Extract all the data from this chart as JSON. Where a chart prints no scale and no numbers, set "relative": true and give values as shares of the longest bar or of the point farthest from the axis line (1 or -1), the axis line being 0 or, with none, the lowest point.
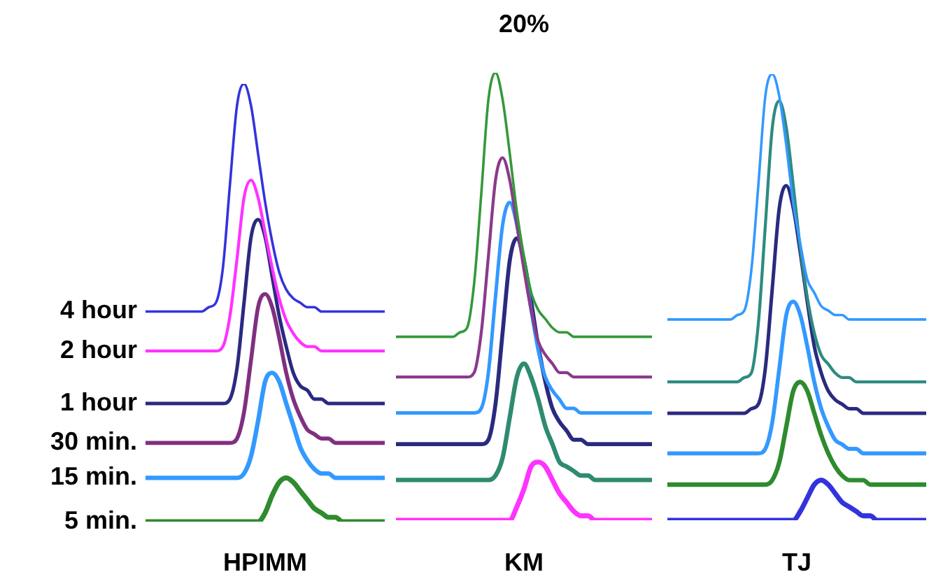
{
  "chart_data": [
    {
      "type": "line",
      "relative": true,
      "xlabel": "HPIMM",
      "categories": [
        null,
        null,
        null,
        null,
        null,
        null,
        null,
        null,
        null,
        null,
        null,
        null,
        null,
        null,
        null,
        null,
        null,
        null,
        null,
        null,
        null,
        null,
        null,
        null,
        null,
        null,
        null,
        null,
        null,
        null,
        null,
        null,
        null,
        null,
        null
      ],
      "series": [
        {
          "name": "4 hour",
          "color": "#3333dd",
          "values": [
            0.48,
            0.48,
            0.48,
            0.48,
            0.48,
            0.48,
            0.48,
            0.48,
            0.48,
            0.49,
            0.5,
            0.58,
            0.77,
            0.95,
            1.0,
            0.95,
            0.84,
            0.73,
            0.64,
            0.57,
            0.53,
            0.51,
            0.5,
            0.49,
            0.49,
            0.48,
            0.48,
            0.48,
            0.48,
            0.48,
            0.48,
            0.48,
            0.48,
            0.48,
            0.48
          ]
        },
        {
          "name": "2 hour",
          "color": "#ff33ff",
          "values": [
            0.39,
            0.39,
            0.39,
            0.39,
            0.39,
            0.39,
            0.39,
            0.39,
            0.39,
            0.39,
            0.39,
            0.4,
            0.47,
            0.6,
            0.74,
            0.78,
            0.74,
            0.66,
            0.58,
            0.51,
            0.46,
            0.43,
            0.41,
            0.4,
            0.4,
            0.39,
            0.39,
            0.39,
            0.39,
            0.39,
            0.39,
            0.39,
            0.39,
            0.39,
            0.39
          ]
        },
        {
          "name": "1 hour",
          "color": "#2a2a80",
          "values": [
            0.27,
            0.27,
            0.27,
            0.27,
            0.27,
            0.27,
            0.27,
            0.27,
            0.27,
            0.27,
            0.27,
            0.27,
            0.28,
            0.35,
            0.5,
            0.65,
            0.69,
            0.65,
            0.56,
            0.47,
            0.4,
            0.34,
            0.31,
            0.3,
            0.28,
            0.28,
            0.27,
            0.27,
            0.27,
            0.27,
            0.27,
            0.27,
            0.27,
            0.27,
            0.27
          ]
        },
        {
          "name": "30 min.",
          "color": "#803080",
          "values": [
            0.18,
            0.18,
            0.18,
            0.18,
            0.18,
            0.18,
            0.18,
            0.18,
            0.18,
            0.18,
            0.18,
            0.18,
            0.18,
            0.19,
            0.25,
            0.37,
            0.49,
            0.52,
            0.49,
            0.42,
            0.34,
            0.28,
            0.24,
            0.21,
            0.2,
            0.19,
            0.19,
            0.18,
            0.18,
            0.18,
            0.18,
            0.18,
            0.18,
            0.18,
            0.18
          ]
        },
        {
          "name": "15 min.",
          "color": "#3399ff",
          "values": [
            0.1,
            0.1,
            0.1,
            0.1,
            0.1,
            0.1,
            0.1,
            0.1,
            0.1,
            0.1,
            0.1,
            0.1,
            0.1,
            0.1,
            0.11,
            0.15,
            0.23,
            0.32,
            0.34,
            0.32,
            0.27,
            0.22,
            0.17,
            0.14,
            0.12,
            0.11,
            0.11,
            0.1,
            0.1,
            0.1,
            0.1,
            0.1,
            0.1,
            0.1,
            0.1
          ]
        },
        {
          "name": "5 min.",
          "color": "#2e8b2e",
          "values": [
            0,
            0,
            0,
            0,
            0,
            0,
            0,
            0,
            0,
            0,
            0,
            0,
            0,
            0,
            0,
            0,
            0,
            0.02,
            0.06,
            0.09,
            0.1,
            0.09,
            0.07,
            0.05,
            0.03,
            0.02,
            0.01,
            0.01,
            0,
            0,
            0,
            0,
            0,
            0,
            0
          ]
        }
      ]
    },
    {
      "type": "line",
      "relative": true,
      "title": "20%",
      "xlabel": "KM",
      "categories": [
        null,
        null,
        null,
        null,
        null,
        null,
        null,
        null,
        null,
        null,
        null,
        null,
        null,
        null,
        null,
        null,
        null,
        null,
        null,
        null,
        null,
        null,
        null,
        null,
        null,
        null,
        null,
        null,
        null,
        null,
        null,
        null,
        null,
        null,
        null,
        null,
        null
      ],
      "series": [
        {
          "color": "#33993a",
          "values": [
            0.41,
            0.41,
            0.41,
            0.41,
            0.41,
            0.41,
            0.41,
            0.41,
            0.41,
            0.42,
            0.43,
            0.53,
            0.73,
            0.94,
            1.0,
            0.94,
            0.82,
            0.69,
            0.59,
            0.51,
            0.47,
            0.45,
            0.43,
            0.42,
            0.42,
            0.41,
            0.41,
            0.41,
            0.41,
            0.41,
            0.41,
            0.41,
            0.41,
            0.41,
            0.41,
            0.41,
            0.41
          ]
        },
        {
          "color": "#8b3a8b",
          "values": [
            0.32,
            0.32,
            0.32,
            0.32,
            0.32,
            0.32,
            0.32,
            0.32,
            0.32,
            0.32,
            0.32,
            0.33,
            0.42,
            0.59,
            0.76,
            0.81,
            0.76,
            0.66,
            0.56,
            0.47,
            0.4,
            0.37,
            0.35,
            0.33,
            0.33,
            0.32,
            0.32,
            0.32,
            0.32,
            0.32,
            0.32,
            0.32,
            0.32,
            0.32,
            0.32,
            0.32,
            0.32
          ]
        },
        {
          "color": "#3399ff",
          "values": [
            0.24,
            0.24,
            0.24,
            0.24,
            0.24,
            0.24,
            0.24,
            0.24,
            0.24,
            0.24,
            0.24,
            0.24,
            0.25,
            0.33,
            0.5,
            0.66,
            0.71,
            0.66,
            0.57,
            0.47,
            0.38,
            0.32,
            0.29,
            0.27,
            0.25,
            0.25,
            0.24,
            0.24,
            0.24,
            0.24,
            0.24,
            0.24,
            0.24,
            0.24,
            0.24,
            0.24,
            0.24
          ]
        },
        {
          "color": "#2a2a80",
          "values": [
            0.17,
            0.17,
            0.17,
            0.17,
            0.17,
            0.17,
            0.17,
            0.17,
            0.17,
            0.17,
            0.17,
            0.17,
            0.17,
            0.18,
            0.26,
            0.42,
            0.58,
            0.63,
            0.58,
            0.49,
            0.39,
            0.31,
            0.25,
            0.22,
            0.2,
            0.18,
            0.18,
            0.17,
            0.17,
            0.17,
            0.17,
            0.17,
            0.17,
            0.17,
            0.17,
            0.17,
            0.17
          ]
        },
        {
          "color": "#2e8b70",
          "values": [
            0.09,
            0.09,
            0.09,
            0.09,
            0.09,
            0.09,
            0.09,
            0.09,
            0.09,
            0.09,
            0.09,
            0.09,
            0.09,
            0.09,
            0.1,
            0.14,
            0.23,
            0.32,
            0.35,
            0.32,
            0.27,
            0.21,
            0.17,
            0.13,
            0.12,
            0.11,
            0.1,
            0.1,
            0.09,
            0.09,
            0.09,
            0.09,
            0.09,
            0.09,
            0.09,
            0.09,
            0.09
          ]
        },
        {
          "color": "#ff33ff",
          "values": [
            0,
            0,
            0,
            0,
            0,
            0,
            0,
            0,
            0,
            0,
            0,
            0,
            0,
            0,
            0,
            0,
            0,
            0.03,
            0.07,
            0.12,
            0.13,
            0.12,
            0.09,
            0.06,
            0.04,
            0.02,
            0.01,
            0.01,
            0,
            0,
            0,
            0,
            0,
            0,
            0,
            0,
            0
          ]
        }
      ]
    },
    {
      "type": "line",
      "relative": true,
      "xlabel": "TJ",
      "categories": [
        null,
        null,
        null,
        null,
        null,
        null,
        null,
        null,
        null,
        null,
        null,
        null,
        null,
        null,
        null,
        null,
        null,
        null,
        null,
        null,
        null,
        null,
        null,
        null,
        null,
        null,
        null,
        null,
        null,
        null,
        null,
        null,
        null,
        null,
        null,
        null,
        null,
        null
      ],
      "series": [
        {
          "color": "#3399ff",
          "values": [
            0.45,
            0.45,
            0.45,
            0.45,
            0.45,
            0.45,
            0.45,
            0.45,
            0.45,
            0.45,
            0.46,
            0.47,
            0.56,
            0.75,
            0.95,
            1.0,
            0.95,
            0.84,
            0.71,
            0.62,
            0.54,
            0.51,
            0.48,
            0.47,
            0.46,
            0.46,
            0.45,
            0.45,
            0.45,
            0.45,
            0.45,
            0.45,
            0.45,
            0.45,
            0.45,
            0.45,
            0.45,
            0.45
          ]
        },
        {
          "color": "#2e8b80",
          "values": [
            0.31,
            0.31,
            0.31,
            0.31,
            0.31,
            0.31,
            0.31,
            0.31,
            0.31,
            0.31,
            0.31,
            0.32,
            0.33,
            0.44,
            0.66,
            0.88,
            0.94,
            0.88,
            0.75,
            0.61,
            0.5,
            0.42,
            0.37,
            0.35,
            0.33,
            0.32,
            0.32,
            0.31,
            0.31,
            0.31,
            0.31,
            0.31,
            0.31,
            0.31,
            0.31,
            0.31,
            0.31,
            0.31
          ]
        },
        {
          "color": "#2a2a80",
          "values": [
            0.24,
            0.24,
            0.24,
            0.24,
            0.24,
            0.24,
            0.24,
            0.24,
            0.24,
            0.24,
            0.24,
            0.24,
            0.25,
            0.26,
            0.34,
            0.52,
            0.7,
            0.75,
            0.7,
            0.6,
            0.49,
            0.39,
            0.33,
            0.29,
            0.27,
            0.26,
            0.25,
            0.25,
            0.24,
            0.24,
            0.24,
            0.24,
            0.24,
            0.24,
            0.24,
            0.24,
            0.24,
            0.24
          ]
        },
        {
          "color": "#3399ff",
          "values": [
            0.15,
            0.15,
            0.15,
            0.15,
            0.15,
            0.15,
            0.15,
            0.15,
            0.15,
            0.15,
            0.15,
            0.15,
            0.15,
            0.15,
            0.16,
            0.22,
            0.34,
            0.46,
            0.49,
            0.46,
            0.39,
            0.31,
            0.25,
            0.21,
            0.18,
            0.17,
            0.16,
            0.16,
            0.15,
            0.15,
            0.15,
            0.15,
            0.15,
            0.15,
            0.15,
            0.15,
            0.15,
            0.15
          ]
        },
        {
          "color": "#2e8b2e",
          "values": [
            0.08,
            0.08,
            0.08,
            0.08,
            0.08,
            0.08,
            0.08,
            0.08,
            0.08,
            0.08,
            0.08,
            0.08,
            0.08,
            0.08,
            0.08,
            0.09,
            0.13,
            0.21,
            0.29,
            0.31,
            0.29,
            0.24,
            0.19,
            0.15,
            0.12,
            0.1,
            0.09,
            0.09,
            0.09,
            0.08,
            0.08,
            0.08,
            0.08,
            0.08,
            0.08,
            0.08,
            0.08,
            0.08
          ]
        },
        {
          "color": "#3333dd",
          "values": [
            0,
            0,
            0,
            0,
            0,
            0,
            0,
            0,
            0,
            0,
            0,
            0,
            0,
            0,
            0,
            0,
            0,
            0,
            0,
            0.02,
            0.05,
            0.08,
            0.09,
            0.08,
            0.06,
            0.04,
            0.03,
            0.02,
            0.01,
            0.01,
            0,
            0,
            0,
            0,
            0,
            0,
            0,
            0
          ]
        }
      ]
    }
  ]
}
